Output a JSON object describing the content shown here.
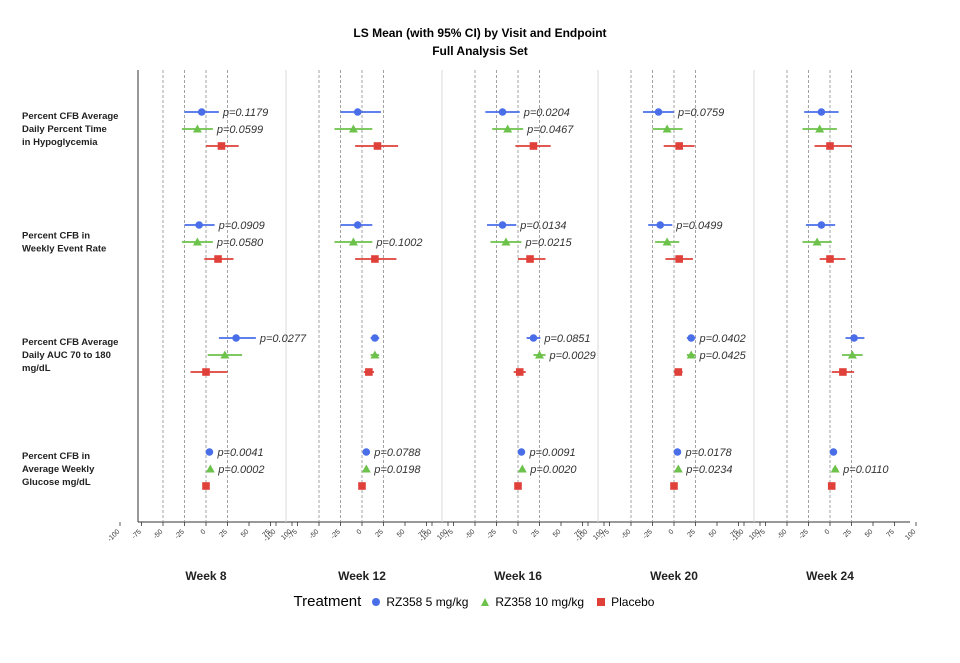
{
  "chart_data": {
    "type": "forest",
    "title": "LS Mean (with 95% CI) by Visit and Endpoint",
    "subtitle": "Full Analysis Set",
    "x_ticks": [
      -100,
      -75,
      -50,
      -25,
      0,
      25,
      50,
      75,
      100
    ],
    "xlim": [
      -110,
      110
    ],
    "reference_lines": [
      -50,
      -25,
      0,
      25
    ],
    "panels": [
      "Week 8",
      "Week 12",
      "Week 16",
      "Week 20",
      "Week 24"
    ],
    "endpoints": [
      {
        "label_lines": [
          "Percent CFB Average",
          "Daily Percent Time",
          "in Hypoglycemia"
        ]
      },
      {
        "label_lines": [
          "Percent CFB in",
          "Weekly Event Rate"
        ]
      },
      {
        "label_lines": [
          "Percent CFB Average",
          "Daily AUC 70 to 180",
          "mg/dL"
        ]
      },
      {
        "label_lines": [
          "Percent CFB in",
          "Average Weekly",
          "Glucose mg/dL"
        ]
      }
    ],
    "legend_title": "Treatment",
    "series": [
      {
        "name": "RZ358 5 mg/kg",
        "color": "#4a6ee8",
        "marker": "circle"
      },
      {
        "name": "RZ358 10 mg/kg",
        "color": "#6cc24a",
        "marker": "triangle"
      },
      {
        "name": "Placebo",
        "color": "#e0403a",
        "marker": "square"
      }
    ],
    "points": [
      [
        [
          {
            "est": -5,
            "lo": -25,
            "hi": 15,
            "p": "p=0.1179"
          },
          {
            "est": -10,
            "lo": -28,
            "hi": 8,
            "p": "p=0.0599"
          },
          {
            "est": 18,
            "lo": 0,
            "hi": 38,
            "p": null
          }
        ],
        [
          {
            "est": -5,
            "lo": -25,
            "hi": 22,
            "p": null
          },
          {
            "est": -10,
            "lo": -32,
            "hi": 12,
            "p": null
          },
          {
            "est": 18,
            "lo": -8,
            "hi": 42,
            "p": null
          }
        ],
        [
          {
            "est": -18,
            "lo": -38,
            "hi": 2,
            "p": "p=0.0204"
          },
          {
            "est": -12,
            "lo": -30,
            "hi": 6,
            "p": "p=0.0467"
          },
          {
            "est": 18,
            "lo": -3,
            "hi": 38,
            "p": null
          }
        ],
        [
          {
            "est": -18,
            "lo": -36,
            "hi": 0,
            "p": "p=0.0759"
          },
          {
            "est": -8,
            "lo": -25,
            "hi": 10,
            "p": null
          },
          {
            "est": 6,
            "lo": -12,
            "hi": 24,
            "p": null
          }
        ],
        [
          {
            "est": -10,
            "lo": -30,
            "hi": 10,
            "p": null
          },
          {
            "est": -12,
            "lo": -32,
            "hi": 8,
            "p": null
          },
          {
            "est": 0,
            "lo": -18,
            "hi": 25,
            "p": null
          }
        ]
      ],
      [
        [
          {
            "est": -8,
            "lo": -25,
            "hi": 10,
            "p": "p=0.0909"
          },
          {
            "est": -10,
            "lo": -28,
            "hi": 8,
            "p": "p=0.0580"
          },
          {
            "est": 14,
            "lo": -2,
            "hi": 32,
            "p": null
          }
        ],
        [
          {
            "est": -5,
            "lo": -25,
            "hi": 12,
            "p": null
          },
          {
            "est": -10,
            "lo": -32,
            "hi": 12,
            "p": "p=0.1002"
          },
          {
            "est": 15,
            "lo": -8,
            "hi": 40,
            "p": null
          }
        ],
        [
          {
            "est": -18,
            "lo": -36,
            "hi": -2,
            "p": "p=0.0134"
          },
          {
            "est": -14,
            "lo": -32,
            "hi": 4,
            "p": "p=0.0215"
          },
          {
            "est": 14,
            "lo": 0,
            "hi": 32,
            "p": null
          }
        ],
        [
          {
            "est": -16,
            "lo": -30,
            "hi": -2,
            "p": "p=0.0499"
          },
          {
            "est": -8,
            "lo": -22,
            "hi": 6,
            "p": null
          },
          {
            "est": 6,
            "lo": -10,
            "hi": 22,
            "p": null
          }
        ],
        [
          {
            "est": -10,
            "lo": -28,
            "hi": 6,
            "p": null
          },
          {
            "est": -15,
            "lo": -32,
            "hi": 2,
            "p": null
          },
          {
            "est": 0,
            "lo": -12,
            "hi": 18,
            "p": null
          }
        ]
      ],
      [
        [
          {
            "est": 35,
            "lo": 15,
            "hi": 58,
            "p": "p=0.0277"
          },
          {
            "est": 22,
            "lo": 2,
            "hi": 42,
            "p": null
          },
          {
            "est": 0,
            "lo": -18,
            "hi": 25,
            "p": null
          }
        ],
        [
          {
            "est": 15,
            "lo": 10,
            "hi": 20,
            "p": null
          },
          {
            "est": 15,
            "lo": 10,
            "hi": 20,
            "p": null
          },
          {
            "est": 8,
            "lo": 2,
            "hi": 14,
            "p": null
          }
        ],
        [
          {
            "est": 18,
            "lo": 10,
            "hi": 26,
            "p": "p=0.0851"
          },
          {
            "est": 25,
            "lo": 18,
            "hi": 32,
            "p": "p=0.0029"
          },
          {
            "est": 2,
            "lo": -5,
            "hi": 9,
            "p": null
          }
        ],
        [
          {
            "est": 20,
            "lo": 15,
            "hi": 25,
            "p": "p=0.0402"
          },
          {
            "est": 20,
            "lo": 15,
            "hi": 25,
            "p": "p=0.0425"
          },
          {
            "est": 5,
            "lo": 0,
            "hi": 10,
            "p": null
          }
        ],
        [
          {
            "est": 28,
            "lo": 18,
            "hi": 40,
            "p": null
          },
          {
            "est": 26,
            "lo": 14,
            "hi": 38,
            "p": null
          },
          {
            "est": 15,
            "lo": 2,
            "hi": 28,
            "p": null
          }
        ]
      ],
      [
        [
          {
            "est": 4,
            "lo": 2,
            "hi": 6,
            "p": "p=0.0041"
          },
          {
            "est": 5,
            "lo": 3,
            "hi": 7,
            "p": "p=0.0002"
          },
          {
            "est": 0,
            "lo": -2,
            "hi": 2,
            "p": null
          }
        ],
        [
          {
            "est": 5,
            "lo": 3,
            "hi": 7,
            "p": "p=0.0788"
          },
          {
            "est": 5,
            "lo": 3,
            "hi": 7,
            "p": "p=0.0198"
          },
          {
            "est": 0,
            "lo": -2,
            "hi": 2,
            "p": null
          }
        ],
        [
          {
            "est": 4,
            "lo": 2,
            "hi": 6,
            "p": "p=0.0091"
          },
          {
            "est": 5,
            "lo": 3,
            "hi": 7,
            "p": "p=0.0020"
          },
          {
            "est": 0,
            "lo": -2,
            "hi": 2,
            "p": null
          }
        ],
        [
          {
            "est": 4,
            "lo": 2,
            "hi": 6,
            "p": "p=0.0178"
          },
          {
            "est": 5,
            "lo": 3,
            "hi": 7,
            "p": "p=0.0234"
          },
          {
            "est": 0,
            "lo": -2,
            "hi": 2,
            "p": null
          }
        ],
        [
          {
            "est": 4,
            "lo": 2,
            "hi": 6,
            "p": null
          },
          {
            "est": 6,
            "lo": 3,
            "hi": 9,
            "p": "p=0.0110"
          },
          {
            "est": 2,
            "lo": 0,
            "hi": 4,
            "p": null
          }
        ]
      ]
    ]
  }
}
